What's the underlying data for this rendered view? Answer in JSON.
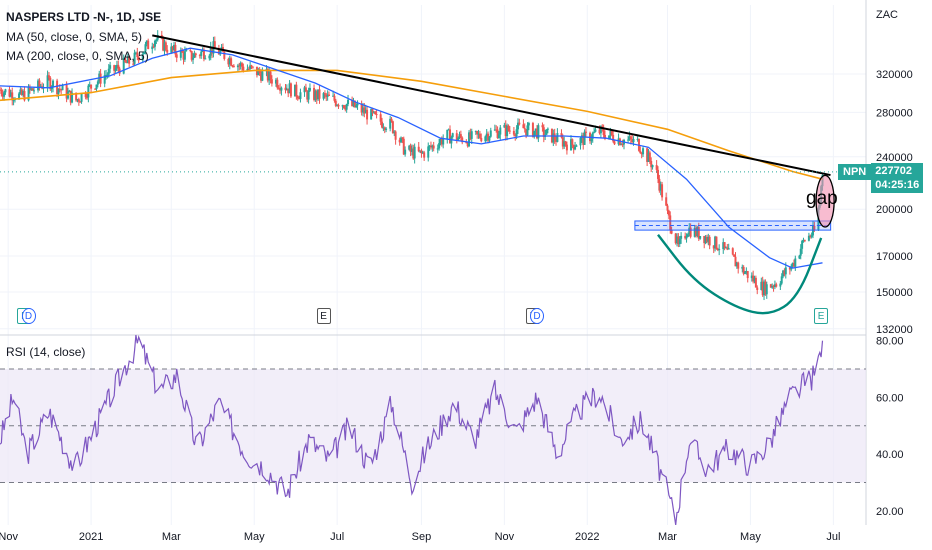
{
  "header": {
    "title": "NASPERS LTD -N-, 1D, JSE",
    "ma50_label": "MA (50, close, 0, SMA, 5)",
    "ma200_label": "MA (200, close, 0, SMA, 5)",
    "rsi_label": "RSI (14, close)"
  },
  "price_badge": {
    "symbol": "NPN",
    "price": "227702",
    "countdown": "04:25:16"
  },
  "annotation": {
    "gap_label": "gap"
  },
  "colors": {
    "up": "#26a69a",
    "down": "#ef5350",
    "ma50": "#2962ff",
    "ma200": "#f59e0b",
    "trendline": "#000000",
    "cup": "#00897b",
    "rsi": "#7e57c2",
    "rsi_band": "#ede7f6",
    "support_zone": "#2962ff",
    "gap_ellipse": "#f48fb1"
  },
  "events": [
    {
      "date": "2020-11-13",
      "kind": "earnings",
      "label": "E"
    },
    {
      "date": "2020-11-16",
      "kind": "dividend",
      "label": "D"
    },
    {
      "date": "2021-06-21",
      "kind": "other",
      "label": "E"
    },
    {
      "date": "2021-11-22",
      "kind": "other",
      "label": "E"
    },
    {
      "date": "2021-11-25",
      "kind": "dividend",
      "label": "D"
    },
    {
      "date": "2022-06-22",
      "kind": "earnings",
      "label": "E"
    }
  ],
  "chart_data": [
    {
      "type": "candlestick",
      "title": "NASPERS LTD -N-, 1D, JSE",
      "currency_label": "ZAC",
      "x_range": [
        "2020-10-26",
        "2022-07-25"
      ],
      "x_ticks": [
        {
          "date": "2020-11-01",
          "label": "Nov"
        },
        {
          "date": "2021-01-01",
          "label": "2021"
        },
        {
          "date": "2021-03-01",
          "label": "Mar"
        },
        {
          "date": "2021-05-01",
          "label": "May"
        },
        {
          "date": "2021-07-01",
          "label": "Jul"
        },
        {
          "date": "2021-09-01",
          "label": "Sep"
        },
        {
          "date": "2021-11-01",
          "label": "Nov"
        },
        {
          "date": "2022-01-01",
          "label": "2022"
        },
        {
          "date": "2022-03-01",
          "label": "Mar"
        },
        {
          "date": "2022-05-01",
          "label": "May"
        },
        {
          "date": "2022-07-01",
          "label": "Jul"
        }
      ],
      "y_scale": "log",
      "y_ticks": [
        "320000",
        "280000",
        "240000",
        "200000",
        "170000",
        "150000",
        "132000"
      ],
      "last_price": 227702,
      "close_path": [
        [
          "2020-10-26",
          303000
        ],
        [
          "2020-11-10",
          296000
        ],
        [
          "2020-12-01",
          312000
        ],
        [
          "2020-12-21",
          292000
        ],
        [
          "2021-01-10",
          318000
        ],
        [
          "2021-02-01",
          336000
        ],
        [
          "2021-02-17",
          362000
        ],
        [
          "2021-03-01",
          347000
        ],
        [
          "2021-03-15",
          340000
        ],
        [
          "2021-04-01",
          350000
        ],
        [
          "2021-04-20",
          330000
        ],
        [
          "2021-05-10",
          318000
        ],
        [
          "2021-06-01",
          300000
        ],
        [
          "2021-06-20",
          296000
        ],
        [
          "2021-07-15",
          285000
        ],
        [
          "2021-08-01",
          272000
        ],
        [
          "2021-08-10",
          268000
        ],
        [
          "2021-08-20",
          245000
        ],
        [
          "2021-09-01",
          242000
        ],
        [
          "2021-09-20",
          258000
        ],
        [
          "2021-10-05",
          255000
        ],
        [
          "2021-10-25",
          262000
        ],
        [
          "2021-11-15",
          265000
        ],
        [
          "2021-12-01",
          260000
        ],
        [
          "2021-12-20",
          250000
        ],
        [
          "2022-01-10",
          262000
        ],
        [
          "2022-01-25",
          255000
        ],
        [
          "2022-02-07",
          252000
        ],
        [
          "2022-02-20",
          230000
        ],
        [
          "2022-03-01",
          196000
        ],
        [
          "2022-03-09",
          175000
        ],
        [
          "2022-03-16",
          187000
        ],
        [
          "2022-03-28",
          182000
        ],
        [
          "2022-04-10",
          175000
        ],
        [
          "2022-04-25",
          162000
        ],
        [
          "2022-05-10",
          152000
        ],
        [
          "2022-05-20",
          155000
        ],
        [
          "2022-06-01",
          165000
        ],
        [
          "2022-06-10",
          180000
        ],
        [
          "2022-06-17",
          185000
        ],
        [
          "2022-06-21",
          205000
        ],
        [
          "2022-06-23",
          227702
        ]
      ],
      "ma50": [
        [
          "2020-10-26",
          307000
        ],
        [
          "2020-12-01",
          305000
        ],
        [
          "2021-01-15",
          318000
        ],
        [
          "2021-02-15",
          338000
        ],
        [
          "2021-03-15",
          350000
        ],
        [
          "2021-04-15",
          342000
        ],
        [
          "2021-05-15",
          326000
        ],
        [
          "2021-06-15",
          310000
        ],
        [
          "2021-07-15",
          290000
        ],
        [
          "2021-08-15",
          275000
        ],
        [
          "2021-09-15",
          256000
        ],
        [
          "2021-10-15",
          251000
        ],
        [
          "2021-11-15",
          258000
        ],
        [
          "2021-12-15",
          258000
        ],
        [
          "2022-01-15",
          256000
        ],
        [
          "2022-02-15",
          248000
        ],
        [
          "2022-03-15",
          222000
        ],
        [
          "2022-04-15",
          188000
        ],
        [
          "2022-05-15",
          169000
        ],
        [
          "2022-06-01",
          163000
        ],
        [
          "2022-06-23",
          166000
        ]
      ],
      "ma200": [
        [
          "2020-10-26",
          292000
        ],
        [
          "2021-01-01",
          300000
        ],
        [
          "2021-03-01",
          316000
        ],
        [
          "2021-05-01",
          324000
        ],
        [
          "2021-07-01",
          324000
        ],
        [
          "2021-09-01",
          312000
        ],
        [
          "2021-11-01",
          296000
        ],
        [
          "2022-01-01",
          281000
        ],
        [
          "2022-03-01",
          264000
        ],
        [
          "2022-04-15",
          245000
        ],
        [
          "2022-06-01",
          228000
        ],
        [
          "2022-06-23",
          222000
        ]
      ],
      "trendline": [
        [
          "2021-02-15",
          366000
        ],
        [
          "2022-06-23",
          226000
        ]
      ],
      "support_zone": [
        186000,
        192000
      ],
      "cup_curve": [
        [
          "2022-02-22",
          183000
        ],
        [
          "2022-03-20",
          156000
        ],
        [
          "2022-04-20",
          142000
        ],
        [
          "2022-05-15",
          138000
        ],
        [
          "2022-06-05",
          147000
        ],
        [
          "2022-06-22",
          181000
        ]
      ],
      "gap": {
        "date": "2022-06-22",
        "low": 188000,
        "high": 225000
      }
    },
    {
      "type": "line",
      "title": "RSI (14, close)",
      "y_ticks": [
        "80.00",
        "60.00",
        "40.00",
        "20.00"
      ],
      "ylim": [
        15,
        82
      ],
      "bands": {
        "upper": 70,
        "middle": 50,
        "lower": 30
      },
      "values": [
        [
          "2020-10-26",
          45
        ],
        [
          "2020-11-05",
          60
        ],
        [
          "2020-11-15",
          40
        ],
        [
          "2020-12-01",
          55
        ],
        [
          "2020-12-20",
          35
        ],
        [
          "2021-01-10",
          55
        ],
        [
          "2021-01-25",
          70
        ],
        [
          "2021-02-05",
          80
        ],
        [
          "2021-02-20",
          62
        ],
        [
          "2021-03-05",
          68
        ],
        [
          "2021-03-20",
          42
        ],
        [
          "2021-04-05",
          58
        ],
        [
          "2021-04-25",
          40
        ],
        [
          "2021-05-10",
          35
        ],
        [
          "2021-05-25",
          26
        ],
        [
          "2021-06-10",
          45
        ],
        [
          "2021-06-25",
          38
        ],
        [
          "2021-07-10",
          50
        ],
        [
          "2021-07-25",
          35
        ],
        [
          "2021-08-10",
          58
        ],
        [
          "2021-08-25",
          30
        ],
        [
          "2021-09-05",
          42
        ],
        [
          "2021-09-25",
          58
        ],
        [
          "2021-10-10",
          45
        ],
        [
          "2021-10-25",
          62
        ],
        [
          "2021-11-10",
          48
        ],
        [
          "2021-11-25",
          60
        ],
        [
          "2021-12-10",
          40
        ],
        [
          "2021-12-25",
          55
        ],
        [
          "2022-01-10",
          62
        ],
        [
          "2022-01-25",
          45
        ],
        [
          "2022-02-10",
          52
        ],
        [
          "2022-02-25",
          32
        ],
        [
          "2022-03-07",
          17
        ],
        [
          "2022-03-17",
          45
        ],
        [
          "2022-03-30",
          35
        ],
        [
          "2022-04-15",
          42
        ],
        [
          "2022-05-01",
          36
        ],
        [
          "2022-05-15",
          44
        ],
        [
          "2022-05-30",
          60
        ],
        [
          "2022-06-10",
          65
        ],
        [
          "2022-06-18",
          68
        ],
        [
          "2022-06-23",
          80
        ]
      ]
    }
  ]
}
